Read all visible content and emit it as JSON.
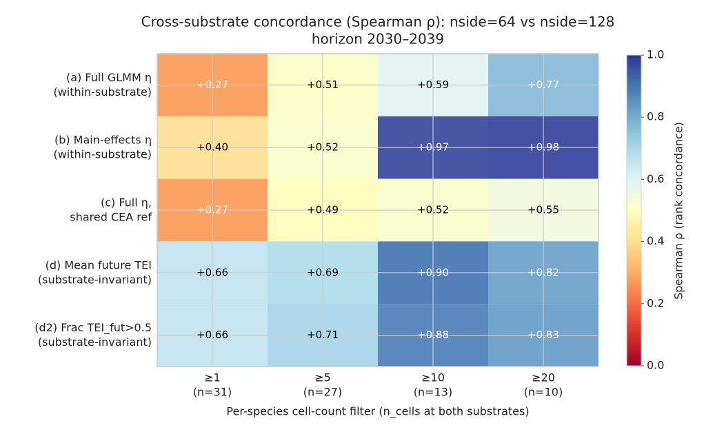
{
  "chart_data": {
    "type": "heatmap",
    "title": [
      "Cross-substrate concordance (Spearman ρ): nside=64 vs nside=128",
      "horizon 2030–2039"
    ],
    "xlabel": "Per-species cell-count filter (n_cells at both substrates)",
    "x_categories": [
      [
        "≥1",
        "(n=31)"
      ],
      [
        "≥5",
        "(n=27)"
      ],
      [
        "≥10",
        "(n=13)"
      ],
      [
        "≥20",
        "(n=10)"
      ]
    ],
    "y_categories": [
      [
        "(a) Full GLMM η",
        "(within-substrate)"
      ],
      [
        "(b) Main-effects η",
        "(within-substrate)"
      ],
      [
        "(c) Full η,",
        "shared CEA ref"
      ],
      [
        "(d) Mean future TEI",
        "(substrate-invariant)"
      ],
      [
        "(d2) Frac TEI_fut>0.5",
        "(substrate-invariant)"
      ]
    ],
    "values": [
      [
        0.27,
        0.51,
        0.59,
        0.77
      ],
      [
        0.4,
        0.52,
        0.97,
        0.98
      ],
      [
        0.27,
        0.49,
        0.52,
        0.55
      ],
      [
        0.66,
        0.69,
        0.9,
        0.82
      ],
      [
        0.66,
        0.71,
        0.88,
        0.83
      ]
    ],
    "value_labels": [
      [
        "+0.27",
        "+0.51",
        "+0.59",
        "+0.77"
      ],
      [
        "+0.40",
        "+0.52",
        "+0.97",
        "+0.98"
      ],
      [
        "+0.27",
        "+0.49",
        "+0.52",
        "+0.55"
      ],
      [
        "+0.66",
        "+0.69",
        "+0.90",
        "+0.82"
      ],
      [
        "+0.66",
        "+0.71",
        "+0.88",
        "+0.83"
      ]
    ],
    "colormap": "RdYlBu",
    "clim": [
      0,
      1
    ],
    "cticks": [
      {
        "value": 0,
        "label": "0.0"
      },
      {
        "value": 0.2,
        "label": "0.2"
      },
      {
        "value": 0.4,
        "label": "0.4"
      },
      {
        "value": 0.6,
        "label": "0.6"
      },
      {
        "value": 0.8,
        "label": "0.8"
      },
      {
        "value": 1,
        "label": "1.0"
      }
    ],
    "colorbar_label": "Spearman ρ (rank concordance)",
    "grid": true
  }
}
